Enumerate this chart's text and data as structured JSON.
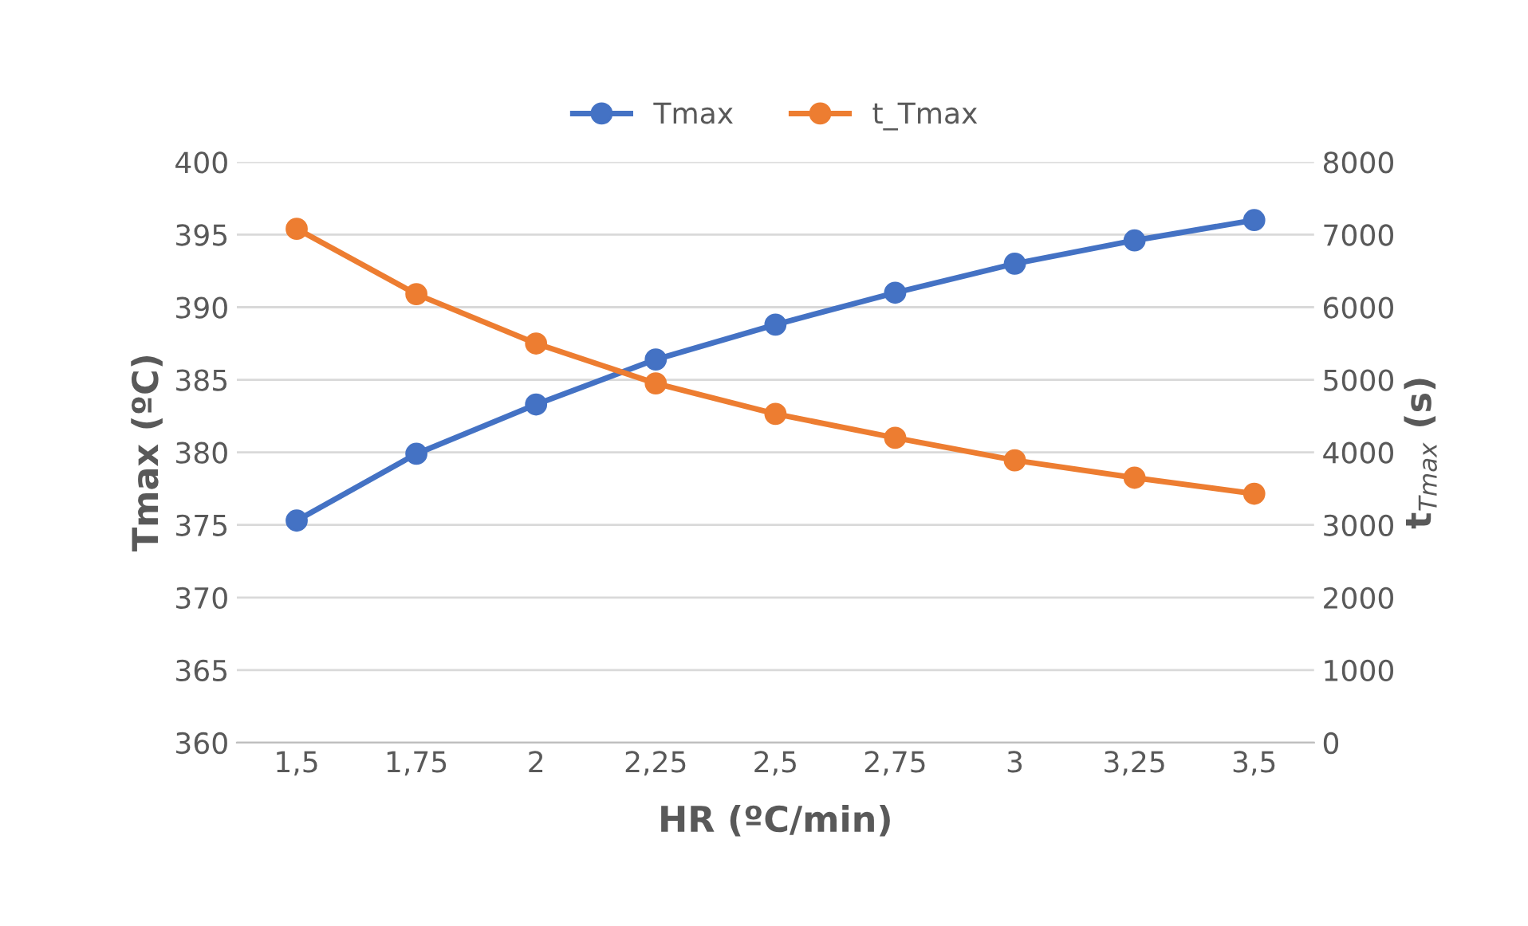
{
  "chart_data": {
    "type": "line",
    "xlabel": "HR (ºC/min)",
    "ylabel": "Tmax (ºC)",
    "y2label": "t$_{Tmax}$ (s)",
    "categories": [
      "1,5",
      "1,75",
      "2",
      "2,25",
      "2,5",
      "2,75",
      "3",
      "3,25",
      "3,5"
    ],
    "series": [
      {
        "name": "Tmax",
        "color": "#4472c4",
        "values": [
          375.3,
          379.9,
          383.3,
          386.4,
          388.8,
          391.0,
          393.0,
          394.6,
          396.0
        ]
      },
      {
        "name": "t_Tmax",
        "color": "#ed7d31",
        "axis": "y2",
        "values": [
          7080,
          6180,
          5500,
          4950,
          4530,
          4200,
          3890,
          3650,
          3430
        ]
      }
    ],
    "ylim": [
      360,
      400
    ],
    "yticks": [
      360,
      365,
      370,
      375,
      380,
      385,
      390,
      395,
      400
    ],
    "y2lim": [
      0,
      8000
    ],
    "y2ticks": [
      0,
      1000,
      2000,
      3000,
      4000,
      5000,
      6000,
      7000,
      8000
    ],
    "grid": true,
    "legend": "top",
    "marker": "circle",
    "line_style": "solid"
  }
}
